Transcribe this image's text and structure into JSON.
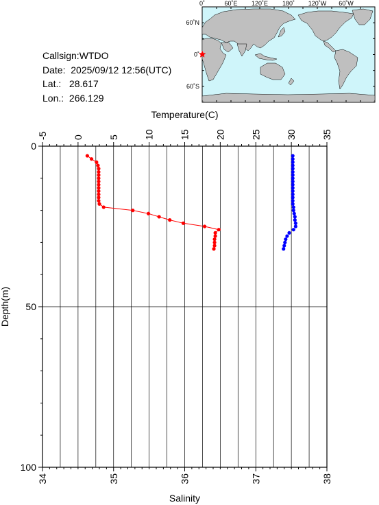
{
  "station": {
    "callsign": "Callsign:WTDO",
    "date": "Date:  2025/09/12 12:56(UTC)",
    "lat": "Lat.:   28.617",
    "lon": "Lon.:  266.129"
  },
  "map": {
    "top_labels": [
      "0˚",
      "60˚E",
      "120˚E",
      "180˚",
      "120˚W",
      "60˚W"
    ],
    "left_labels": [
      "60˚N",
      "0˚",
      "60˚S"
    ],
    "ocean_color": "#cff5fa",
    "land_color": "#bfbfbf",
    "marker_color": "#ff0000",
    "marker_icon": "star-icon"
  },
  "chart_data": {
    "type": "scatter",
    "title": "",
    "ylabel": "Depth(m)",
    "ylim": [
      0,
      100
    ],
    "yticks": [
      0,
      50,
      100
    ],
    "y_inverted": true,
    "temperature_axis": {
      "label": "Temperature(C)",
      "range": [
        -5,
        35
      ],
      "ticks": [
        -5,
        0,
        5,
        10,
        15,
        20,
        25,
        30,
        35
      ],
      "position": "top"
    },
    "salinity_axis": {
      "label": "Salinity",
      "range": [
        34,
        38
      ],
      "ticks": [
        34,
        35,
        36,
        37,
        38
      ],
      "position": "bottom"
    },
    "grid": true,
    "series": [
      {
        "color": "#ff0000",
        "axis": "temperature",
        "connected": true,
        "points": [
          [
            1.3,
            3
          ],
          [
            1.9,
            4
          ],
          [
            2.6,
            5
          ],
          [
            2.8,
            6
          ],
          [
            2.9,
            7
          ],
          [
            2.9,
            8
          ],
          [
            2.9,
            9
          ],
          [
            2.9,
            10
          ],
          [
            2.9,
            11
          ],
          [
            2.9,
            12
          ],
          [
            2.9,
            13
          ],
          [
            2.9,
            14
          ],
          [
            2.9,
            15
          ],
          [
            2.9,
            16
          ],
          [
            2.9,
            17
          ],
          [
            3.0,
            18
          ],
          [
            3.6,
            19
          ],
          [
            7.7,
            20
          ],
          [
            9.9,
            21
          ],
          [
            11.4,
            22
          ],
          [
            12.9,
            23
          ],
          [
            14.8,
            24
          ],
          [
            17.8,
            25
          ],
          [
            19.8,
            26
          ],
          [
            19.3,
            27
          ],
          [
            19.3,
            28
          ],
          [
            19.2,
            29
          ],
          [
            19.2,
            30
          ],
          [
            19.2,
            31
          ],
          [
            19.1,
            32
          ]
        ]
      },
      {
        "color": "#0000ff",
        "axis": "salinity",
        "connected": false,
        "points": [
          [
            37.52,
            3
          ],
          [
            37.52,
            4
          ],
          [
            37.52,
            5
          ],
          [
            37.52,
            6
          ],
          [
            37.52,
            7
          ],
          [
            37.52,
            8
          ],
          [
            37.52,
            9
          ],
          [
            37.52,
            10
          ],
          [
            37.52,
            11
          ],
          [
            37.52,
            12
          ],
          [
            37.52,
            13
          ],
          [
            37.52,
            14
          ],
          [
            37.52,
            15
          ],
          [
            37.52,
            16
          ],
          [
            37.52,
            17
          ],
          [
            37.52,
            18
          ],
          [
            37.53,
            19
          ],
          [
            37.53,
            20
          ],
          [
            37.54,
            21
          ],
          [
            37.55,
            22
          ],
          [
            37.55,
            23
          ],
          [
            37.56,
            24
          ],
          [
            37.56,
            25
          ],
          [
            37.53,
            26
          ],
          [
            37.47,
            27
          ],
          [
            37.44,
            28
          ],
          [
            37.42,
            29
          ],
          [
            37.41,
            30
          ],
          [
            37.4,
            31
          ],
          [
            37.39,
            32
          ]
        ]
      }
    ]
  }
}
